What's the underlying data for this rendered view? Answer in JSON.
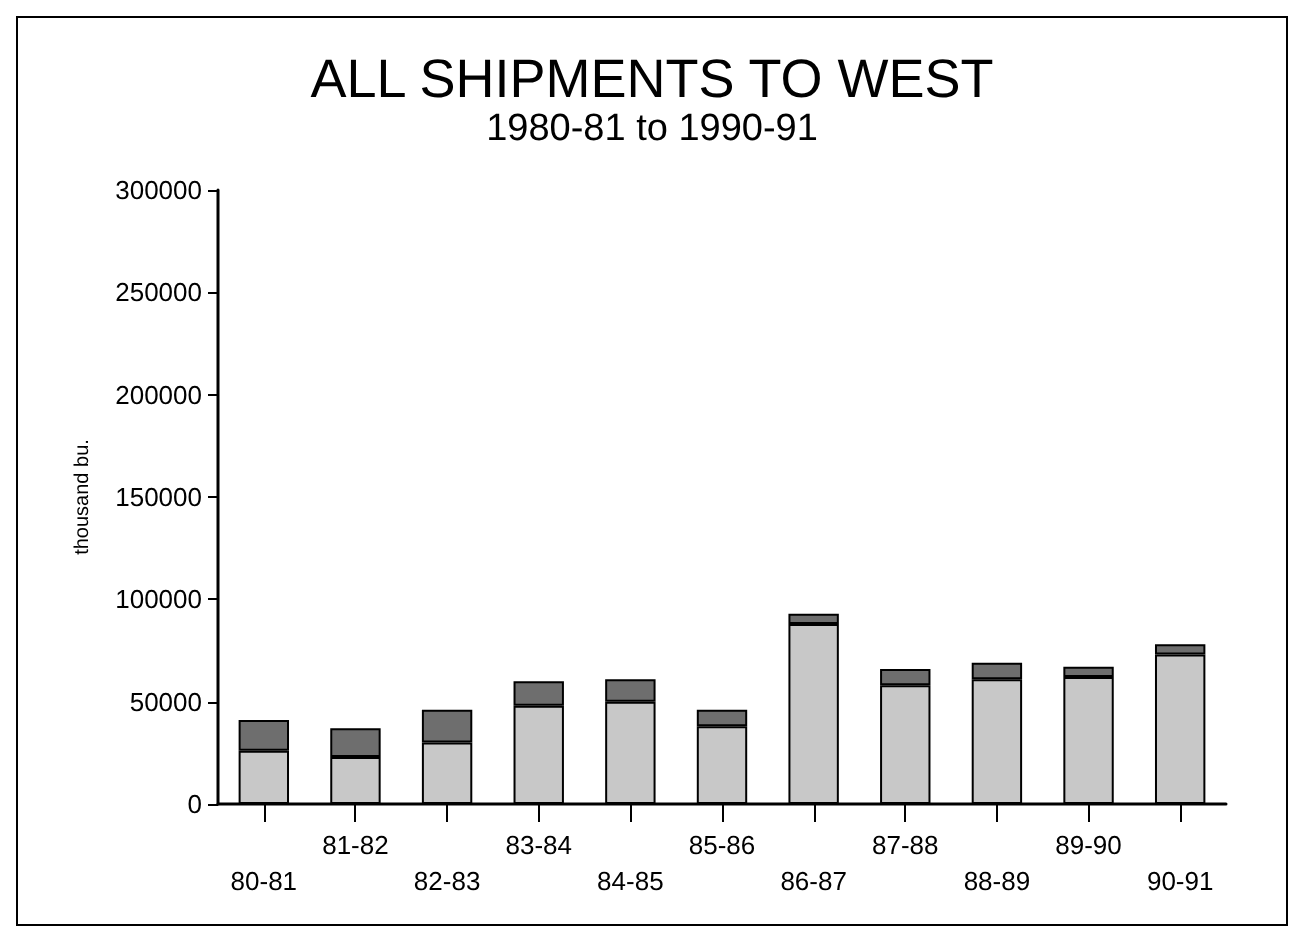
{
  "chart_data": {
    "type": "bar",
    "title": "ALL SHIPMENTS TO WEST",
    "subtitle": "1980-81 to 1990-91",
    "ylabel": "thousand bu.",
    "categories": [
      "80-81",
      "81-82",
      "82-83",
      "83-84",
      "84-85",
      "85-86",
      "86-87",
      "87-88",
      "88-89",
      "89-90",
      "90-91"
    ],
    "stacked": true,
    "series": [
      {
        "color": "#c8c8c8",
        "values": [
          26000,
          23000,
          30000,
          48000,
          50000,
          38000,
          88000,
          58000,
          61000,
          62000,
          73000
        ]
      },
      {
        "color": "#6e6e6e",
        "values": [
          15000,
          14000,
          16000,
          12000,
          11000,
          8000,
          5000,
          8000,
          8000,
          5000,
          5000
        ]
      }
    ],
    "ylim": [
      0,
      300000
    ],
    "yticks": [
      0,
      50000,
      100000,
      150000,
      200000,
      250000,
      300000
    ],
    "grid": false
  }
}
